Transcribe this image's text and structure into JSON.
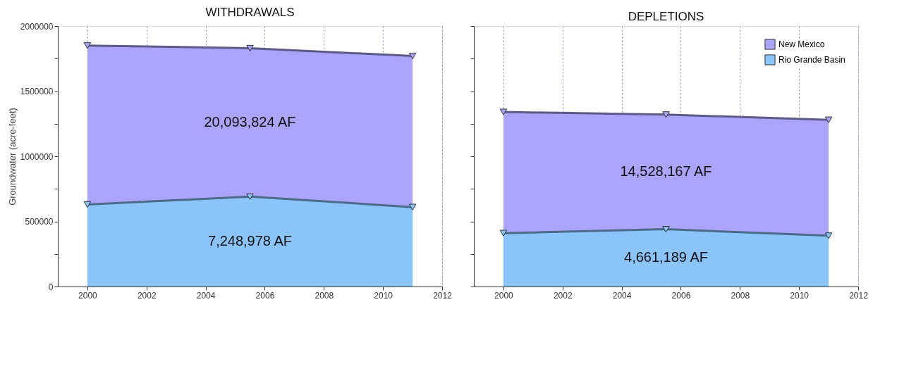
{
  "chart_data": [
    {
      "type": "area",
      "title": "WITHDRAWALS",
      "ylabel": "Groundwater (acre-feet)",
      "x": [
        2000,
        2005.5,
        2011
      ],
      "series": [
        {
          "color": "#aaa5fa",
          "values": [
            1850000,
            1830000,
            1770000
          ]
        },
        {
          "color": "#8bc4fb",
          "values": [
            630000,
            690000,
            610000
          ]
        }
      ],
      "xlim": [
        1999,
        2012
      ],
      "xticks": [
        2000,
        2002,
        2004,
        2006,
        2008,
        2010,
        2012
      ],
      "ylim": [
        0,
        2000000
      ],
      "yticks": [
        0,
        {
          "value": 250000,
          "label": null
        },
        500000,
        {
          "value": 750000,
          "label": null
        },
        1000000,
        {
          "value": 1250000,
          "label": null
        },
        1500000,
        {
          "value": 1750000,
          "label": null
        },
        2000000
      ],
      "grid": "x",
      "marker": "triangle",
      "legend": false,
      "annotations": [
        "20,093,824 AF",
        "7,248,978 AF"
      ]
    },
    {
      "type": "area",
      "title": "DEPLETIONS",
      "x": [
        2000,
        2005.5,
        2011
      ],
      "series": [
        {
          "name": "New Mexico",
          "color": "#aaa5fa",
          "values": [
            1340000,
            1320000,
            1280000
          ]
        },
        {
          "name": "Rio Grande Basin",
          "color": "#8bc4fb",
          "values": [
            410000,
            440000,
            390000
          ]
        }
      ],
      "xlim": [
        1999,
        2012
      ],
      "xticks": [
        2000,
        2002,
        2004,
        2006,
        2008,
        2010,
        2012
      ],
      "ylim": [
        0,
        2000000
      ],
      "yticks": [
        {
          "value": 0,
          "label": null
        },
        {
          "value": 250000,
          "label": null
        },
        {
          "value": 500000,
          "label": null
        },
        {
          "value": 750000,
          "label": null
        },
        {
          "value": 1000000,
          "label": null
        },
        {
          "value": 1250000,
          "label": null
        },
        {
          "value": 1500000,
          "label": null
        },
        {
          "value": 1750000,
          "label": null
        },
        {
          "value": 2000000,
          "label": null
        }
      ],
      "tick_labels": "x",
      "grid": "x",
      "marker": "triangle",
      "legend": "top right",
      "annotations": [
        "14,528,167 AF",
        "4,661,189 AF"
      ]
    }
  ]
}
